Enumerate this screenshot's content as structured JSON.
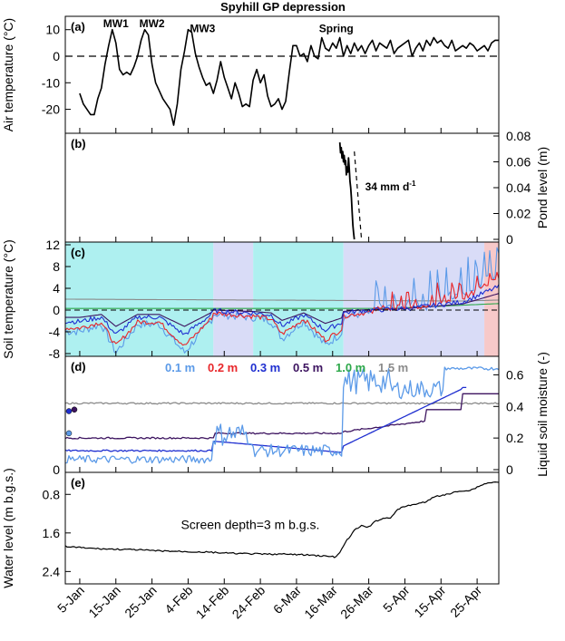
{
  "chart_data": {
    "type": "line",
    "title": "Spyhill GP  depression",
    "x_start_date": "2012-01-01",
    "x_ticks": [
      "5-Jan",
      "15-Jan",
      "25-Jan",
      "4-Feb",
      "14-Feb",
      "24-Feb",
      "6-Mar",
      "16-Mar",
      "26-Mar",
      "5-Apr",
      "15-Apr",
      "25-Apr"
    ],
    "panels": [
      {
        "label": "(a)",
        "ylabel": "Air temperature (°C)",
        "ylim": [
          -28,
          14
        ],
        "yticks": [
          -20,
          -10,
          0,
          10
        ],
        "zero_line": "dashed",
        "annotations": [
          "MW1",
          "MW2",
          "MW3",
          "Spring"
        ],
        "series": [
          {
            "name": "Air temperature",
            "color": "#000000",
            "x_days": [
              4,
              5,
              7,
              8,
              9,
              10,
              11,
              12,
              13,
              14,
              15,
              16,
              17,
              18,
              19,
              20,
              21,
              22,
              23,
              24,
              25,
              26,
              27,
              28,
              29,
              30,
              31,
              32,
              33,
              34,
              35,
              36,
              37,
              38,
              39,
              40,
              41,
              42,
              43,
              44,
              45,
              46,
              47,
              48,
              49,
              50,
              51,
              52,
              53,
              54,
              55,
              56,
              57,
              58,
              59,
              60,
              61,
              62,
              63,
              64,
              65,
              66,
              67,
              68,
              69,
              70,
              71,
              72,
              73,
              74,
              75,
              76,
              77,
              78,
              79,
              80,
              81,
              82,
              83,
              84,
              85,
              86,
              87,
              88,
              89,
              90,
              91,
              92,
              93,
              94,
              95,
              96,
              97,
              98,
              99,
              100,
              101,
              102,
              103,
              104,
              105,
              106,
              107,
              108,
              109,
              110,
              111,
              112,
              113,
              114,
              115,
              116,
              117,
              118,
              119,
              120
            ],
            "values": [
              -14,
              -18,
              -22,
              -22,
              -16,
              -12,
              -3,
              4,
              10,
              5,
              -5,
              -7,
              -6,
              -7,
              -4,
              0,
              6,
              10,
              8,
              -3,
              -10,
              -13,
              -16,
              -18,
              -20,
              -26,
              -18,
              -5,
              2,
              10,
              9,
              1,
              -4,
              -8,
              -11,
              -10,
              -14,
              -9,
              -2,
              -8,
              -12,
              -16,
              -10,
              -14,
              -19,
              -18,
              -19,
              -9,
              -5,
              -10,
              -7,
              -15,
              -19,
              -18,
              -16,
              -20,
              -17,
              -6,
              4,
              4,
              0,
              1,
              -2,
              4,
              0,
              -1,
              7,
              3,
              2,
              5,
              3,
              7,
              0,
              4,
              1,
              5,
              2,
              4,
              1,
              4,
              6,
              2,
              5,
              4,
              3,
              6,
              1,
              3,
              4,
              5,
              6,
              0,
              3,
              5,
              2,
              6,
              4,
              7,
              5,
              6,
              4,
              3,
              6,
              2,
              3,
              4,
              3,
              5,
              4,
              2,
              3,
              4,
              2,
              5,
              6,
              6
            ]
          }
        ]
      },
      {
        "label": "(b)",
        "ylabel": "Pond level (m)",
        "ylim": [
          0,
          0.08
        ],
        "yticks": [
          0,
          0.02,
          0.04,
          0.06,
          0.08
        ],
        "annotation": "34 mm d",
        "annotation_superscript": "-1",
        "series": [
          {
            "name": "Pond level",
            "color": "#000000",
            "x_days": [
              76.0,
              76.2,
              76.4,
              76.6,
              76.8,
              77.0,
              77.2,
              77.4,
              77.6,
              77.8,
              78.0,
              78.2,
              78.4,
              78.6,
              78.8,
              79.0,
              79.2,
              79.4,
              79.6,
              79.8,
              80.0
            ],
            "values": [
              0.075,
              0.067,
              0.071,
              0.063,
              0.068,
              0.06,
              0.065,
              0.058,
              0.061,
              0.05,
              0.056,
              0.052,
              0.063,
              0.055,
              0.045,
              0.04,
              0.032,
              0.021,
              0.011,
              0.005,
              0.0
            ]
          },
          {
            "name": "34 mm/d fit",
            "color": "#000000",
            "dash": "dashed",
            "x_days": [
              80.0,
              82.0
            ],
            "values": [
              0.068,
              0.0
            ]
          }
        ]
      },
      {
        "label": "(c)",
        "ylabel": "Soil temperature (°C)",
        "ylim": [
          -8,
          12
        ],
        "yticks": [
          -8,
          -4,
          0,
          4,
          8,
          12
        ],
        "shaded_periods": [
          {
            "from_day": 0,
            "to_day": 41,
            "color": "#aef0f0"
          },
          {
            "from_day": 41,
            "to_day": 52,
            "color": "#d9dcf7"
          },
          {
            "from_day": 52,
            "to_day": 77,
            "color": "#aef0f0"
          },
          {
            "from_day": 77,
            "to_day": 116,
            "color": "#d9dcf7"
          },
          {
            "from_day": 116,
            "to_day": 120,
            "color": "#f7c9c9"
          }
        ],
        "series": [
          {
            "name": "0.1 m",
            "color": "#5b9ae8"
          },
          {
            "name": "0.2 m",
            "color": "#e8262a"
          },
          {
            "name": "0.3 m",
            "color": "#1f2fd0"
          },
          {
            "name": "0.5 m",
            "color": "#3d1460"
          },
          {
            "name": "1.0 m",
            "color": "#2ea84a"
          },
          {
            "name": "1.5 m",
            "color": "#8a8a8a"
          }
        ]
      },
      {
        "label": "(d)",
        "ylabel": "Liquid soil moisture (-)",
        "ylim": [
          0,
          0.7
        ],
        "yticks": [
          0,
          0.2,
          0.4,
          0.6
        ],
        "legend": [
          "0.1 m",
          "0.2 m",
          "0.3 m",
          "0.5 m",
          "1.0 m",
          "1.5 m"
        ],
        "legend_colors": [
          "#5b9ae8",
          "#e8262a",
          "#1f2fd0",
          "#3d1460",
          "#2ea84a",
          "#8a8a8a"
        ]
      },
      {
        "label": "(e)",
        "ylabel": "Water level (m b.g.s.)",
        "ylim_inverted": [
          2.6,
          0.4
        ],
        "yticks": [
          0.8,
          1.6,
          2.4
        ],
        "annotation": "Screen depth=3 m b.g.s.",
        "series": [
          {
            "name": "Water level",
            "color": "#000000",
            "x_days": [
              0,
              5,
              10,
              15,
              20,
              25,
              30,
              35,
              40,
              45,
              50,
              55,
              60,
              65,
              70,
              75,
              76,
              78,
              80,
              82,
              84,
              86,
              88,
              90,
              92,
              94,
              96,
              98,
              100,
              102,
              104,
              106,
              108,
              110,
              112,
              114,
              116,
              118,
              120
            ],
            "values": [
              1.88,
              1.91,
              1.93,
              1.94,
              1.95,
              1.97,
              1.98,
              1.99,
              2.0,
              2.02,
              2.03,
              2.04,
              2.04,
              2.05,
              2.07,
              2.1,
              2.0,
              1.75,
              1.55,
              1.45,
              1.48,
              1.35,
              1.3,
              1.28,
              1.12,
              1.05,
              1.02,
              0.98,
              0.96,
              0.85,
              0.82,
              0.8,
              0.75,
              0.72,
              0.72,
              0.65,
              0.58,
              0.55,
              0.55
            ]
          }
        ]
      }
    ]
  }
}
